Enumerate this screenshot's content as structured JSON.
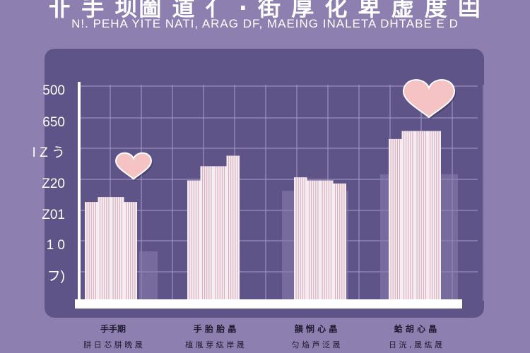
{
  "title": "卝 手 坝圗 道 亻 · 街 厚 化 卑 虚 度 凷",
  "subtitle": "N!. PEHA YITE NATI,  ARAG DF,  MAEING  INALETA DHTABE  E D",
  "colors": {
    "background": "#8e7fb1",
    "panel": "#5f5488",
    "grid": "#a79cc8",
    "bar": "#f4eef3",
    "bar_stripe": "#d9a7b6",
    "ghost_bar": "#8a7daf",
    "heart": "#f6c3c5",
    "axis": "#ffffff"
  },
  "chart_data": {
    "type": "bar",
    "title": "卝 手 坝圗 道 亻 · 街 厚 化 卑 虚 度 凷",
    "subtitle": "N!. PEHA YITE NATI,  ARAG DF,  MAEING  INALETA DHTABE  E D",
    "y_tick_labels": [
      "500",
      "650",
      "I Z う",
      "Z20",
      "Z01",
      "1 0",
      "フ)"
    ],
    "grid": true,
    "legend": "none",
    "categories": [
      "手手期",
      "手 胎 胎 晶",
      "韻 悯 心 晶",
      "蛤 胡 心 晶"
    ],
    "category_sublabels": [
      "肼 日 芯 肼 晩 晟",
      "植 胤 芽 紘 岸 晟",
      "匀 焔 芦 泛 晟",
      "日 洸 , 晟 紘 晟"
    ],
    "ylim": [
      0,
      350
    ],
    "groups": [
      {
        "values": [
          160,
          168,
          168,
          160
        ],
        "ghost": 80,
        "heart": 220
      },
      {
        "values": [
          195,
          218,
          218,
          235
        ],
        "ghost": null,
        "heart": null
      },
      {
        "values": [
          200,
          195,
          195,
          190
        ],
        "ghost": 178,
        "heart": null
      },
      {
        "values": [
          262,
          275,
          275,
          275
        ],
        "ghost": 205,
        "heart": 330
      }
    ]
  }
}
